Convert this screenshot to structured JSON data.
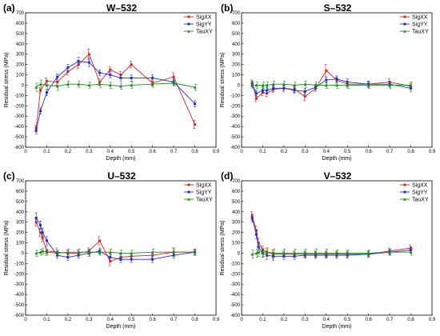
{
  "figure": {
    "colors": {
      "SigXX": "#e0201b",
      "SigYY": "#1f2fd6",
      "TauXY": "#1b8a1b"
    }
  },
  "chart_data": [
    {
      "type": "line",
      "letter": "(a)",
      "title": "W–532",
      "xlabel": "Depth (mm)",
      "ylabel": "Residual stress (MPa)",
      "xlim": [
        0,
        0.9
      ],
      "ylim": [
        -600,
        700
      ],
      "xticks": [
        "0",
        "0.1",
        "0.2",
        "0.3",
        "0.4",
        "0.5",
        "0.6",
        "0.7",
        "0.8",
        "0.9"
      ],
      "yticks": [
        "-600",
        "-500",
        "-400",
        "-300",
        "-200",
        "-100",
        "0",
        "100",
        "200",
        "300",
        "400",
        "500",
        "600",
        "700"
      ],
      "legend_position": "top-right",
      "series": [
        {
          "name": "SigXX",
          "x": [
            0.05,
            0.07,
            0.1,
            0.15,
            0.2,
            0.25,
            0.3,
            0.35,
            0.4,
            0.45,
            0.5,
            0.6,
            0.7,
            0.8
          ],
          "y": [
            -420,
            -50,
            40,
            30,
            130,
            200,
            300,
            30,
            150,
            100,
            200,
            20,
            80,
            -380
          ],
          "err": [
            30,
            30,
            30,
            30,
            30,
            40,
            50,
            30,
            30,
            30,
            30,
            30,
            40,
            40
          ]
        },
        {
          "name": "SigYY",
          "x": [
            0.05,
            0.07,
            0.1,
            0.15,
            0.2,
            0.25,
            0.3,
            0.35,
            0.4,
            0.45,
            0.5,
            0.6,
            0.7,
            0.8
          ],
          "y": [
            -440,
            -250,
            -70,
            80,
            170,
            230,
            220,
            120,
            100,
            70,
            70,
            70,
            30,
            -180
          ],
          "err": [
            30,
            30,
            30,
            30,
            30,
            40,
            40,
            30,
            30,
            30,
            30,
            30,
            30,
            30
          ]
        },
        {
          "name": "TauXY",
          "x": [
            0.05,
            0.07,
            0.1,
            0.15,
            0.2,
            0.25,
            0.3,
            0.35,
            0.4,
            0.45,
            0.5,
            0.6,
            0.7,
            0.8
          ],
          "y": [
            -20,
            10,
            0,
            -10,
            10,
            10,
            0,
            10,
            0,
            -10,
            0,
            10,
            20,
            -20
          ],
          "err": [
            40,
            40,
            40,
            40,
            30,
            30,
            30,
            30,
            30,
            30,
            30,
            30,
            30,
            30
          ]
        }
      ]
    },
    {
      "type": "line",
      "letter": "(b)",
      "title": "S–532",
      "xlabel": "Depth (mm)",
      "ylabel": "Residual stress (MPa)",
      "xlim": [
        0,
        0.9
      ],
      "ylim": [
        -600,
        700
      ],
      "xticks": [
        "0",
        "0.1",
        "0.2",
        "0.3",
        "0.4",
        "0.5",
        "0.6",
        "0.7",
        "0.8",
        "0.9"
      ],
      "yticks": [
        "-600",
        "-500",
        "-400",
        "-300",
        "-200",
        "-100",
        "0",
        "100",
        "200",
        "300",
        "400",
        "500",
        "600",
        "700"
      ],
      "legend_position": "top-right",
      "series": [
        {
          "name": "SigXX",
          "x": [
            0.05,
            0.07,
            0.1,
            0.12,
            0.15,
            0.2,
            0.25,
            0.3,
            0.35,
            0.4,
            0.45,
            0.5,
            0.6,
            0.7,
            0.8
          ],
          "y": [
            20,
            -130,
            -70,
            -80,
            -40,
            -30,
            -40,
            -110,
            -30,
            140,
            50,
            10,
            10,
            30,
            -10
          ],
          "err": [
            30,
            30,
            30,
            30,
            30,
            30,
            30,
            40,
            30,
            60,
            30,
            30,
            30,
            30,
            30
          ]
        },
        {
          "name": "SigYY",
          "x": [
            0.05,
            0.07,
            0.1,
            0.12,
            0.15,
            0.2,
            0.25,
            0.3,
            0.35,
            0.4,
            0.45,
            0.5,
            0.6,
            0.7,
            0.8
          ],
          "y": [
            10,
            -80,
            -50,
            -50,
            -30,
            -30,
            -50,
            -60,
            -20,
            50,
            60,
            30,
            10,
            10,
            -30
          ],
          "err": [
            30,
            30,
            30,
            30,
            30,
            30,
            30,
            30,
            30,
            30,
            30,
            30,
            30,
            30,
            30
          ]
        },
        {
          "name": "TauXY",
          "x": [
            0.05,
            0.07,
            0.1,
            0.12,
            0.15,
            0.2,
            0.25,
            0.3,
            0.35,
            0.4,
            0.45,
            0.5,
            0.6,
            0.7,
            0.8
          ],
          "y": [
            0,
            0,
            0,
            0,
            10,
            10,
            0,
            10,
            0,
            0,
            0,
            0,
            0,
            0,
            0
          ],
          "err": [
            30,
            30,
            30,
            30,
            30,
            30,
            30,
            30,
            30,
            30,
            30,
            30,
            30,
            30,
            30
          ]
        }
      ]
    },
    {
      "type": "line",
      "letter": "(c)",
      "title": "U–532",
      "xlabel": "Depth (mm)",
      "ylabel": "Residual stress (MPa)",
      "xlim": [
        0,
        0.9
      ],
      "ylim": [
        -600,
        700
      ],
      "xticks": [
        "0",
        "0.1",
        "0.2",
        "0.3",
        "0.4",
        "0.5",
        "0.6",
        "0.7",
        "0.8",
        "0.9"
      ],
      "yticks": [
        "-600",
        "-500",
        "-400",
        "-300",
        "-200",
        "-100",
        "0",
        "100",
        "200",
        "300",
        "400",
        "500",
        "600",
        "700"
      ],
      "legend_position": "top-right",
      "series": [
        {
          "name": "SigXX",
          "x": [
            0.05,
            0.07,
            0.08,
            0.1,
            0.15,
            0.2,
            0.25,
            0.3,
            0.35,
            0.4,
            0.45,
            0.5,
            0.6,
            0.7,
            0.8
          ],
          "y": [
            300,
            200,
            150,
            20,
            10,
            0,
            0,
            20,
            120,
            -80,
            -40,
            -30,
            -20,
            10,
            10
          ],
          "err": [
            40,
            40,
            40,
            40,
            40,
            30,
            30,
            30,
            40,
            40,
            30,
            30,
            30,
            40,
            30
          ]
        },
        {
          "name": "SigYY",
          "x": [
            0.05,
            0.07,
            0.08,
            0.1,
            0.15,
            0.2,
            0.25,
            0.3,
            0.35,
            0.4,
            0.45,
            0.5,
            0.6,
            0.7,
            0.8
          ],
          "y": [
            340,
            270,
            200,
            120,
            -20,
            -40,
            -20,
            0,
            20,
            -40,
            -60,
            -60,
            -60,
            -20,
            10
          ],
          "err": [
            50,
            40,
            40,
            40,
            30,
            30,
            30,
            30,
            30,
            30,
            30,
            30,
            30,
            30,
            30
          ]
        },
        {
          "name": "TauXY",
          "x": [
            0.05,
            0.07,
            0.08,
            0.1,
            0.15,
            0.2,
            0.25,
            0.3,
            0.35,
            0.4,
            0.45,
            0.5,
            0.6,
            0.7,
            0.8
          ],
          "y": [
            0,
            10,
            20,
            10,
            0,
            10,
            10,
            10,
            10,
            10,
            0,
            0,
            10,
            10,
            10
          ],
          "err": [
            30,
            30,
            30,
            30,
            30,
            30,
            30,
            30,
            30,
            30,
            30,
            30,
            30,
            40,
            30
          ]
        }
      ]
    },
    {
      "type": "line",
      "letter": "(d)",
      "title": "V–532",
      "xlabel": "Depth (mm)",
      "ylabel": "Residual stress (MPa)",
      "xlim": [
        0,
        0.9
      ],
      "ylim": [
        -600,
        700
      ],
      "xticks": [
        "0",
        "0.1",
        "0.2",
        "0.3",
        "0.4",
        "0.5",
        "0.6",
        "0.7",
        "0.8",
        "0.9"
      ],
      "yticks": [
        "-600",
        "-500",
        "-400",
        "-300",
        "-200",
        "-100",
        "0",
        "100",
        "200",
        "300",
        "400",
        "500",
        "600",
        "700"
      ],
      "legend_position": "top-right",
      "series": [
        {
          "name": "SigXX",
          "x": [
            0.05,
            0.07,
            0.08,
            0.1,
            0.12,
            0.15,
            0.2,
            0.25,
            0.3,
            0.35,
            0.4,
            0.45,
            0.5,
            0.6,
            0.7,
            0.8
          ],
          "y": [
            360,
            220,
            100,
            30,
            10,
            -10,
            -10,
            -10,
            -10,
            -10,
            -10,
            -10,
            -10,
            -10,
            20,
            50
          ],
          "err": [
            40,
            40,
            40,
            40,
            40,
            40,
            30,
            30,
            30,
            30,
            30,
            30,
            30,
            30,
            30,
            30
          ]
        },
        {
          "name": "SigYY",
          "x": [
            0.05,
            0.07,
            0.08,
            0.1,
            0.12,
            0.15,
            0.2,
            0.25,
            0.3,
            0.35,
            0.4,
            0.45,
            0.5,
            0.6,
            0.7,
            0.8
          ],
          "y": [
            340,
            180,
            60,
            0,
            -20,
            -30,
            -30,
            -30,
            -20,
            -20,
            -20,
            -20,
            -20,
            -10,
            10,
            30
          ],
          "err": [
            40,
            40,
            40,
            40,
            40,
            40,
            30,
            30,
            30,
            30,
            30,
            30,
            30,
            30,
            30,
            30
          ]
        },
        {
          "name": "TauXY",
          "x": [
            0.05,
            0.07,
            0.08,
            0.1,
            0.12,
            0.15,
            0.2,
            0.25,
            0.3,
            0.35,
            0.4,
            0.45,
            0.5,
            0.6,
            0.7,
            0.8
          ],
          "y": [
            -10,
            0,
            10,
            10,
            10,
            0,
            0,
            0,
            0,
            0,
            0,
            0,
            0,
            0,
            10,
            10
          ],
          "err": [
            40,
            40,
            40,
            40,
            40,
            40,
            40,
            40,
            40,
            40,
            40,
            30,
            30,
            30,
            30,
            30
          ]
        }
      ]
    }
  ]
}
